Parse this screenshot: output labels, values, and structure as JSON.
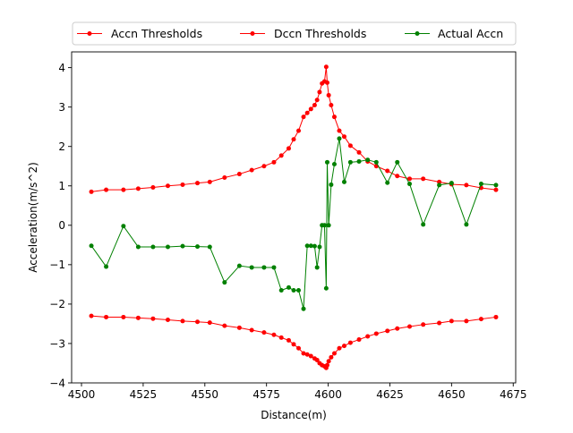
{
  "chart_data": {
    "type": "line",
    "title": "",
    "xlabel": "Distance(m)",
    "ylabel": "Acceleration(m/s^2)",
    "xlim": [
      4496,
      4676
    ],
    "ylim": [
      -4,
      4.4
    ],
    "xticks": [
      "4500",
      "4525",
      "4550",
      "4575",
      "4600",
      "4625",
      "4650",
      "4675"
    ],
    "yticks": [
      "−4",
      "−3",
      "−2",
      "−1",
      "0",
      "1",
      "2",
      "3",
      "4"
    ],
    "grid": false,
    "legend_position": "top",
    "series": [
      {
        "name": "Accn Thresholds",
        "color": "#ff0000",
        "x": [
          4504,
          4510,
          4517,
          4523,
          4529,
          4535,
          4541,
          4547,
          4552,
          4558,
          4564,
          4569,
          4574,
          4578,
          4581,
          4584,
          4586,
          4588,
          4590,
          4591.5,
          4593,
          4594.5,
          4595.5,
          4596.5,
          4597.5,
          4598.5,
          4599.2,
          4599.6,
          4600.2,
          4601.2,
          4602.5,
          4604.5,
          4606.5,
          4609,
          4612.5,
          4616,
          4619.5,
          4624,
          4628,
          4633,
          4638.5,
          4645,
          4650,
          4656,
          4662,
          4668
        ],
        "y": [
          0.85,
          0.9,
          0.9,
          0.93,
          0.96,
          1.0,
          1.03,
          1.07,
          1.1,
          1.21,
          1.3,
          1.4,
          1.5,
          1.6,
          1.77,
          1.95,
          2.18,
          2.4,
          2.75,
          2.85,
          2.95,
          3.05,
          3.18,
          3.38,
          3.6,
          3.65,
          4.02,
          3.62,
          3.3,
          3.05,
          2.75,
          2.4,
          2.25,
          2.02,
          1.85,
          1.62,
          1.5,
          1.38,
          1.25,
          1.18,
          1.18,
          1.1,
          1.04,
          1.02,
          0.95,
          0.9
        ]
      },
      {
        "name": "Dccn Thresholds",
        "color": "#ff0000",
        "x": [
          4504,
          4510,
          4517,
          4523,
          4529,
          4535,
          4541,
          4547,
          4552,
          4558,
          4564,
          4569,
          4574,
          4578,
          4581,
          4584,
          4586,
          4588,
          4590,
          4591.5,
          4593,
          4594.5,
          4595.5,
          4596.5,
          4597.5,
          4598.5,
          4599.2,
          4599.6,
          4600.2,
          4601.2,
          4602.5,
          4604.5,
          4606.5,
          4609,
          4612.5,
          4616,
          4619.5,
          4624,
          4628,
          4633,
          4638.5,
          4645,
          4650,
          4656,
          4662,
          4668
        ],
        "y": [
          -2.3,
          -2.33,
          -2.33,
          -2.35,
          -2.37,
          -2.4,
          -2.43,
          -2.45,
          -2.47,
          -2.55,
          -2.6,
          -2.66,
          -2.72,
          -2.78,
          -2.85,
          -2.92,
          -3.02,
          -3.12,
          -3.25,
          -3.28,
          -3.32,
          -3.38,
          -3.42,
          -3.5,
          -3.55,
          -3.58,
          -3.62,
          -3.55,
          -3.45,
          -3.35,
          -3.25,
          -3.12,
          -3.06,
          -2.98,
          -2.9,
          -2.82,
          -2.75,
          -2.68,
          -2.62,
          -2.57,
          -2.52,
          -2.48,
          -2.43,
          -2.43,
          -2.38,
          -2.33
        ]
      },
      {
        "name": "Actual Accn",
        "color": "#008000",
        "x": [
          4504,
          4510,
          4517,
          4523,
          4529,
          4535,
          4541,
          4547,
          4552,
          4558,
          4564,
          4569,
          4574,
          4578,
          4581,
          4584,
          4586,
          4588,
          4590,
          4591.5,
          4593,
          4594.5,
          4595.5,
          4596.5,
          4597.5,
          4598.5,
          4599.2,
          4599.6,
          4600.2,
          4601.2,
          4602.5,
          4604.5,
          4606.5,
          4609,
          4612.5,
          4616,
          4619.5,
          4624,
          4628,
          4633,
          4638.5,
          4645,
          4650,
          4656,
          4662,
          4668
        ],
        "y": [
          -0.52,
          -1.05,
          -0.02,
          -0.55,
          -0.55,
          -0.55,
          -0.53,
          -0.54,
          -0.55,
          -1.45,
          -1.03,
          -1.07,
          -1.07,
          -1.07,
          -1.65,
          -1.58,
          -1.65,
          -1.65,
          -2.12,
          -0.52,
          -0.52,
          -0.53,
          -1.07,
          -0.55,
          0.0,
          0.0,
          -1.6,
          1.6,
          0.0,
          1.03,
          1.55,
          2.2,
          1.1,
          1.6,
          1.62,
          1.66,
          1.6,
          1.08,
          1.6,
          1.05,
          0.02,
          1.02,
          1.07,
          0.02,
          1.05,
          1.02
        ]
      }
    ]
  }
}
